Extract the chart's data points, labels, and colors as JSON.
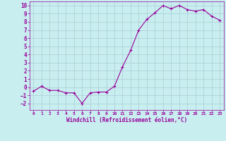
{
  "x": [
    0,
    1,
    2,
    3,
    4,
    5,
    6,
    7,
    8,
    9,
    10,
    11,
    12,
    13,
    14,
    15,
    16,
    17,
    18,
    19,
    20,
    21,
    22,
    23
  ],
  "y": [
    -0.5,
    0.1,
    -0.4,
    -0.4,
    -0.7,
    -0.7,
    -2.0,
    -0.7,
    -0.6,
    -0.6,
    0.1,
    2.5,
    4.5,
    7.0,
    8.3,
    9.1,
    10.0,
    9.6,
    10.0,
    9.5,
    9.3,
    9.5,
    8.7,
    8.2
  ],
  "line_color": "#990099",
  "marker": "+",
  "bg_color": "#c8eef0",
  "grid_color": "#aaccd4",
  "xlabel": "Windchill (Refroidissement éolien,°C)",
  "xlabel_color": "#990099",
  "tick_color": "#990099",
  "xlim": [
    -0.5,
    23.5
  ],
  "ylim": [
    -2.8,
    10.5
  ],
  "yticks": [
    -2,
    -1,
    0,
    1,
    2,
    3,
    4,
    5,
    6,
    7,
    8,
    9,
    10
  ],
  "xticks": [
    0,
    1,
    2,
    3,
    4,
    5,
    6,
    7,
    8,
    9,
    10,
    11,
    12,
    13,
    14,
    15,
    16,
    17,
    18,
    19,
    20,
    21,
    22,
    23
  ]
}
